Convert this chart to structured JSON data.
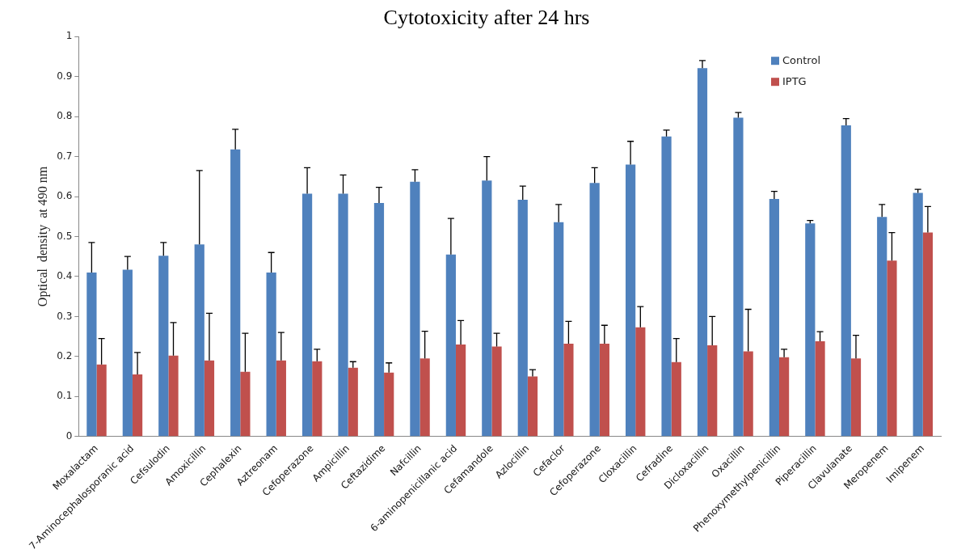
{
  "chart_data": {
    "type": "bar",
    "title": "Cytotoxicity after 24 hrs",
    "ylabel": "Optical  density  at 490 nm",
    "categories": [
      "Moxalactam",
      "7-Aminocephalosporanic acid",
      "Cefsulodin",
      "Amoxicillin",
      "Cephalexin",
      "Aztreonam",
      "Cefoperazone",
      "Ampicillin",
      "Ceftazidime",
      "Nafcillin",
      "6-aminopenicillanic acid",
      "Cefamandole",
      "Azlocillin",
      "Cefaclor",
      "Cefoperazone",
      "Cloxacillin",
      "Cefradine",
      "Dicloxacillin",
      "Oxacillin",
      "Phenoxymethylpenicillin",
      "Piperacillin",
      "Clavulanate",
      "Meropenem",
      "Imipenem"
    ],
    "series": [
      {
        "name": "Control",
        "color": "#4f81bd",
        "values": [
          0.41,
          0.417,
          0.452,
          0.48,
          0.718,
          0.41,
          0.607,
          0.607,
          0.584,
          0.637,
          0.455,
          0.64,
          0.592,
          0.536,
          0.634,
          0.68,
          0.75,
          0.921,
          0.797,
          0.594,
          0.533,
          0.778,
          0.549,
          0.609
        ],
        "errors": [
          [
            0.41,
            0.485
          ],
          [
            0.417,
            0.45
          ],
          [
            0.452,
            0.485
          ],
          [
            0.48,
            0.665
          ],
          [
            0.718,
            0.768
          ],
          [
            0.41,
            0.46
          ],
          [
            0.607,
            0.672
          ],
          [
            0.607,
            0.654
          ],
          [
            0.584,
            0.623
          ],
          [
            0.637,
            0.667
          ],
          [
            0.455,
            0.545
          ],
          [
            0.64,
            0.7
          ],
          [
            0.592,
            0.626
          ],
          [
            0.536,
            0.58
          ],
          [
            0.634,
            0.672
          ],
          [
            0.68,
            0.738
          ],
          [
            0.75,
            0.766
          ],
          [
            0.921,
            0.94
          ],
          [
            0.797,
            0.81
          ],
          [
            0.594,
            0.613
          ],
          [
            0.533,
            0.54
          ],
          [
            0.778,
            0.795
          ],
          [
            0.549,
            0.58
          ],
          [
            0.609,
            0.618
          ]
        ]
      },
      {
        "name": "IPTG",
        "color": "#c0504d",
        "values": [
          0.18,
          0.155,
          0.202,
          0.19,
          0.162,
          0.19,
          0.188,
          0.172,
          0.16,
          0.195,
          0.23,
          0.225,
          0.15,
          0.232,
          0.232,
          0.273,
          0.186,
          0.228,
          0.213,
          0.198,
          0.238,
          0.195,
          0.44,
          0.51
        ],
        "errors": [
          [
            0.18,
            0.245
          ],
          [
            0.155,
            0.21
          ],
          [
            0.202,
            0.285
          ],
          [
            0.19,
            0.308
          ],
          [
            0.162,
            0.258
          ],
          [
            0.19,
            0.26
          ],
          [
            0.188,
            0.218
          ],
          [
            0.172,
            0.187
          ],
          [
            0.16,
            0.184
          ],
          [
            0.195,
            0.263
          ],
          [
            0.23,
            0.29
          ],
          [
            0.225,
            0.258
          ],
          [
            0.15,
            0.167
          ],
          [
            0.232,
            0.288
          ],
          [
            0.232,
            0.278
          ],
          [
            0.273,
            0.325
          ],
          [
            0.186,
            0.245
          ],
          [
            0.228,
            0.3
          ],
          [
            0.213,
            0.318
          ],
          [
            0.198,
            0.218
          ],
          [
            0.238,
            0.262
          ],
          [
            0.195,
            0.253
          ],
          [
            0.44,
            0.51
          ],
          [
            0.51,
            0.575
          ]
        ]
      }
    ],
    "ylim": [
      0,
      1
    ],
    "yticks": [
      0,
      0.1,
      0.2,
      0.3,
      0.4,
      0.5,
      0.6,
      0.7,
      0.8,
      0.9,
      1
    ],
    "grid": false,
    "legend": "top right"
  }
}
